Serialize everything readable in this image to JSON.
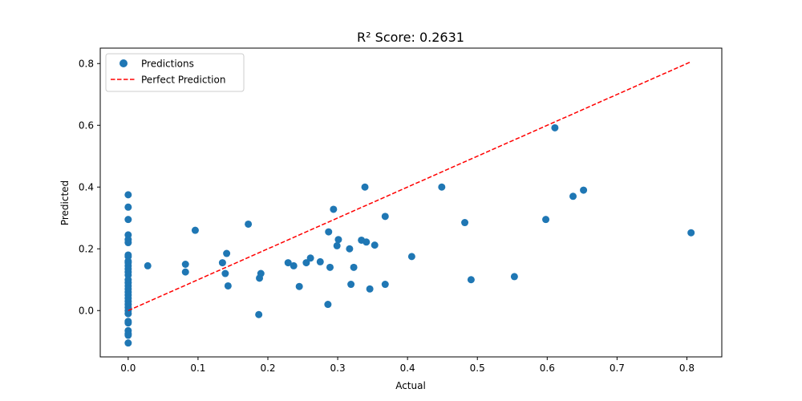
{
  "chart_data": {
    "type": "scatter",
    "title": "R² Score: 0.2631",
    "xlabel": "Actual",
    "ylabel": "Predicted",
    "xlim": [
      -0.04,
      0.85
    ],
    "ylim": [
      -0.15,
      0.85
    ],
    "xticks": [
      0.0,
      0.1,
      0.2,
      0.3,
      0.4,
      0.5,
      0.6,
      0.7,
      0.8
    ],
    "xtick_labels": [
      "0.0",
      "0.1",
      "0.2",
      "0.3",
      "0.4",
      "0.5",
      "0.6",
      "0.7",
      "0.8"
    ],
    "yticks": [
      0.0,
      0.2,
      0.4,
      0.6,
      0.8
    ],
    "ytick_labels": [
      "0.0",
      "0.2",
      "0.4",
      "0.6",
      "0.8"
    ],
    "grid": false,
    "legend_position": "top-left",
    "colors": {
      "points": "#1f77b4",
      "line": "#ff0000"
    },
    "series": [
      {
        "name": "Predictions",
        "kind": "scatter",
        "x": [
          0,
          0,
          0,
          0,
          0,
          0,
          0,
          0,
          0,
          0,
          0,
          0,
          0,
          0,
          0,
          0,
          0,
          0,
          0,
          0,
          0,
          0,
          0,
          0,
          0,
          0,
          0,
          0,
          0,
          0,
          0,
          0,
          0.028,
          0.082,
          0.082,
          0.096,
          0.135,
          0.139,
          0.141,
          0.143,
          0.172,
          0.187,
          0.188,
          0.19,
          0.229,
          0.237,
          0.245,
          0.255,
          0.261,
          0.275,
          0.286,
          0.287,
          0.289,
          0.294,
          0.299,
          0.301,
          0.317,
          0.319,
          0.323,
          0.334,
          0.339,
          0.341,
          0.346,
          0.353,
          0.368,
          0.368,
          0.406,
          0.449,
          0.482,
          0.491,
          0.553,
          0.598,
          0.611,
          0.637,
          0.652,
          0.806
        ],
        "y": [
          0.375,
          0.335,
          0.295,
          0.245,
          0.23,
          0.22,
          0.18,
          0.175,
          0.16,
          0.145,
          0.135,
          0.125,
          0.115,
          0.1,
          0.09,
          0.08,
          0.07,
          0.06,
          0.05,
          0.04,
          0.03,
          0.02,
          0.01,
          0.0,
          -0.01,
          -0.035,
          -0.04,
          -0.065,
          -0.075,
          -0.08,
          -0.105,
          0.155,
          0.145,
          0.15,
          0.125,
          0.26,
          0.155,
          0.12,
          0.185,
          0.08,
          0.28,
          -0.013,
          0.105,
          0.12,
          0.155,
          0.145,
          0.078,
          0.155,
          0.17,
          0.158,
          0.02,
          0.255,
          0.14,
          0.328,
          0.21,
          0.23,
          0.2,
          0.085,
          0.14,
          0.228,
          0.4,
          0.222,
          0.07,
          0.212,
          0.305,
          0.085,
          0.175,
          0.4,
          0.285,
          0.1,
          0.11,
          0.295,
          0.592,
          0.37,
          0.39,
          0.252
        ]
      },
      {
        "name": "Perfect Prediction",
        "kind": "line",
        "style": "dashed",
        "x": [
          0.0,
          0.806
        ],
        "y": [
          0.0,
          0.806
        ]
      }
    ]
  }
}
